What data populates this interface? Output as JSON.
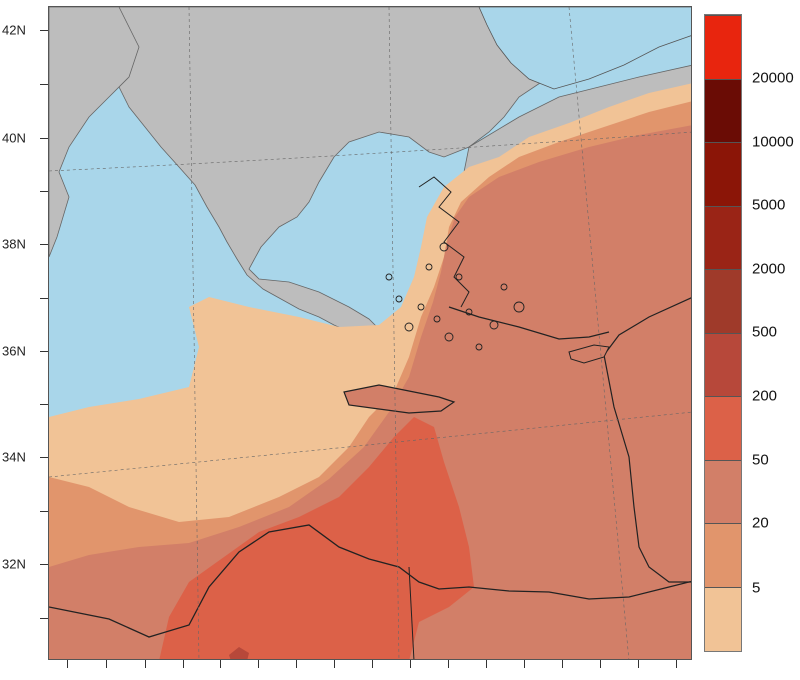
{
  "map": {
    "lat_labels": [
      "42N",
      "40N",
      "38N",
      "36N",
      "34N",
      "32N"
    ]
  },
  "legend": {
    "labels": [
      "20000",
      "10000",
      "5000",
      "2000",
      "500",
      "200",
      "50",
      "20",
      "5"
    ],
    "band_colors": [
      "#e8250e",
      "#6a0c05",
      "#8b1507",
      "#9a2416",
      "#9f3a2a",
      "#b7483a",
      "#dc6148",
      "#d27f68",
      "#e1956c",
      "#f1c396",
      "#ffffff"
    ]
  },
  "colors": {
    "sea": "#a9d6ea",
    "land": "#bdbdbd",
    "level_5": "#f1c396",
    "level_20": "#e1956c",
    "level_50": "#d27f68",
    "level_200": "#dc6148",
    "level_500": "#b7483a"
  }
}
